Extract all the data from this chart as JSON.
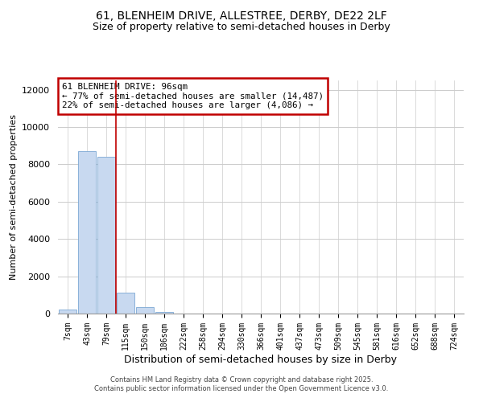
{
  "title_line1": "61, BLENHEIM DRIVE, ALLESTREE, DERBY, DE22 2LF",
  "title_line2": "Size of property relative to semi-detached houses in Derby",
  "xlabel": "Distribution of semi-detached houses by size in Derby",
  "ylabel": "Number of semi-detached properties",
  "footer_line1": "Contains HM Land Registry data © Crown copyright and database right 2025.",
  "footer_line2": "Contains public sector information licensed under the Open Government Licence v3.0.",
  "annotation_line1": "61 BLENHEIM DRIVE: 96sqm",
  "annotation_line2": "← 77% of semi-detached houses are smaller (14,487)",
  "annotation_line3": "22% of semi-detached houses are larger (4,086) →",
  "categories": [
    "7sqm",
    "43sqm",
    "79sqm",
    "115sqm",
    "150sqm",
    "186sqm",
    "222sqm",
    "258sqm",
    "294sqm",
    "330sqm",
    "366sqm",
    "401sqm",
    "437sqm",
    "473sqm",
    "509sqm",
    "545sqm",
    "581sqm",
    "616sqm",
    "652sqm",
    "688sqm",
    "724sqm"
  ],
  "bar_values": [
    200,
    8700,
    8400,
    1100,
    350,
    80,
    20,
    0,
    0,
    0,
    0,
    0,
    0,
    0,
    0,
    0,
    0,
    0,
    0,
    0,
    0
  ],
  "bar_color": "#c8d9f0",
  "bar_edge_color": "#7BA7D4",
  "vline_color": "#c00000",
  "vline_x": 2.5,
  "ylim": [
    0,
    12500
  ],
  "yticks": [
    0,
    2000,
    4000,
    6000,
    8000,
    10000,
    12000
  ],
  "grid_color": "#cccccc",
  "background_color": "#ffffff",
  "plot_bg_color": "#ffffff"
}
